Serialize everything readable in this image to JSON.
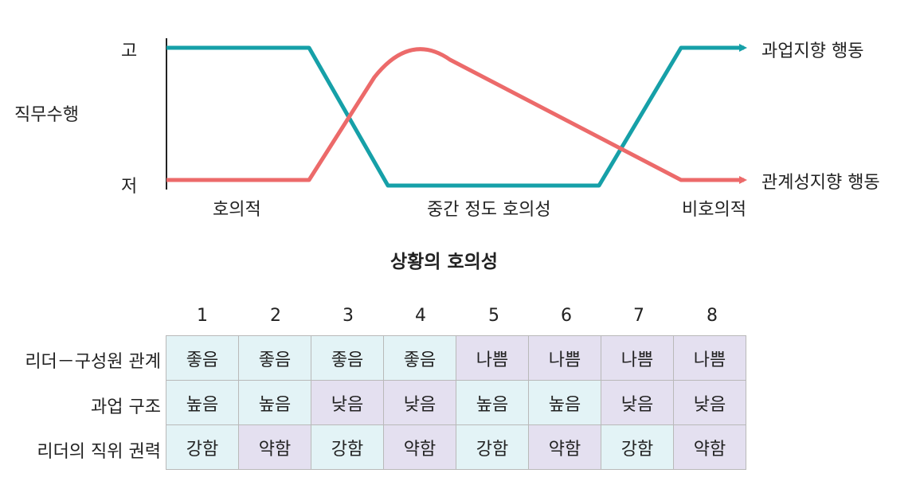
{
  "diagram": {
    "y_axis_label": "직무수행",
    "y_high": "고",
    "y_low": "저",
    "x_labels": [
      "호의적",
      "중간 정도 호의성",
      "비호의적"
    ],
    "x_axis_title": "상황의 호의성",
    "series": [
      {
        "name": "과업지향 행동",
        "color": "#16a0a8"
      },
      {
        "name": "관계성지향 행동",
        "color": "#ec6a6a"
      }
    ]
  },
  "table": {
    "columns": [
      "1",
      "2",
      "3",
      "4",
      "5",
      "6",
      "7",
      "8"
    ],
    "rows": [
      {
        "label": "리더－구성원 관계",
        "cells": [
          "좋음",
          "좋음",
          "좋음",
          "좋음",
          "나쁨",
          "나쁨",
          "나쁨",
          "나쁨"
        ],
        "shade": [
          "light",
          "light",
          "light",
          "light",
          "dark",
          "dark",
          "dark",
          "dark"
        ]
      },
      {
        "label": "과업 구조",
        "cells": [
          "높음",
          "높음",
          "낮음",
          "낮음",
          "높음",
          "높음",
          "낮음",
          "낮음"
        ],
        "shade": [
          "light",
          "light",
          "dark",
          "dark",
          "light",
          "light",
          "dark",
          "dark"
        ]
      },
      {
        "label": "리더의 직위 권력",
        "cells": [
          "강함",
          "약함",
          "강함",
          "약함",
          "강함",
          "약함",
          "강함",
          "약함"
        ],
        "shade": [
          "light",
          "dark",
          "light",
          "dark",
          "light",
          "dark",
          "light",
          "dark"
        ]
      }
    ],
    "colors": {
      "light": "#e3f3f6",
      "dark": "#e4e0f0",
      "border": "#b9b9b9"
    }
  }
}
